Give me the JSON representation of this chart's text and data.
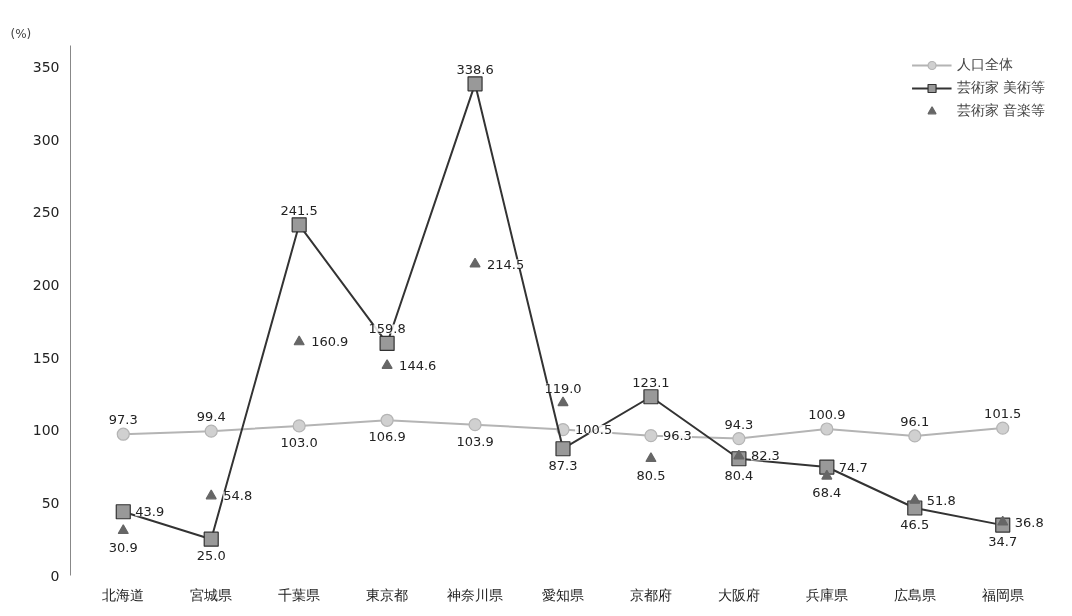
{
  "chart_data": {
    "type": "line",
    "ylabel": "(%)",
    "categories": [
      "北海道",
      "宮城県",
      "千葉県",
      "東京都",
      "神奈川県",
      "愛知県",
      "京都府",
      "大阪府",
      "兵庫県",
      "広島県",
      "福岡県"
    ],
    "series": [
      {
        "name": "人口全体",
        "marker": "circle",
        "color": "#b4b4b4",
        "values": [
          97.3,
          99.4,
          103.0,
          106.9,
          103.9,
          100.5,
          96.3,
          94.3,
          100.9,
          96.1,
          101.5
        ],
        "value_labels": [
          "97.3",
          "99.4",
          "103.0",
          "106.9",
          "103.9",
          "100.5",
          "96.3",
          "94.3",
          "100.9",
          "96.1",
          "101.5"
        ]
      },
      {
        "name": "芸術家 美術等",
        "marker": "square",
        "color": "#333333",
        "values": [
          43.9,
          25.0,
          241.5,
          159.8,
          338.6,
          87.3,
          123.1,
          80.4,
          74.7,
          46.5,
          34.7
        ],
        "value_labels": [
          "43.9",
          "25.0",
          "241.5",
          "159.8",
          "338.6",
          "87.3",
          "123.1",
          "80.4",
          "74.7",
          "46.5",
          "34.7"
        ]
      },
      {
        "name": "芸術家 音楽等",
        "type": "scatter",
        "marker": "triangle",
        "color": "#666666",
        "values": [
          30.9,
          54.8,
          160.9,
          144.6,
          214.5,
          119.0,
          80.5,
          82.3,
          68.4,
          51.8,
          36.8
        ],
        "value_labels": [
          "30.9",
          "54.8",
          "160.9",
          "144.6",
          "214.5",
          "119.0",
          "80.5",
          "82.3",
          "68.4",
          "51.8",
          "36.8"
        ]
      }
    ],
    "ylim": [
      0,
      365
    ],
    "yticks": [
      0,
      50,
      100,
      150,
      200,
      250,
      300,
      350
    ],
    "legend": "top right",
    "grid": false,
    "line_style": "solid"
  }
}
